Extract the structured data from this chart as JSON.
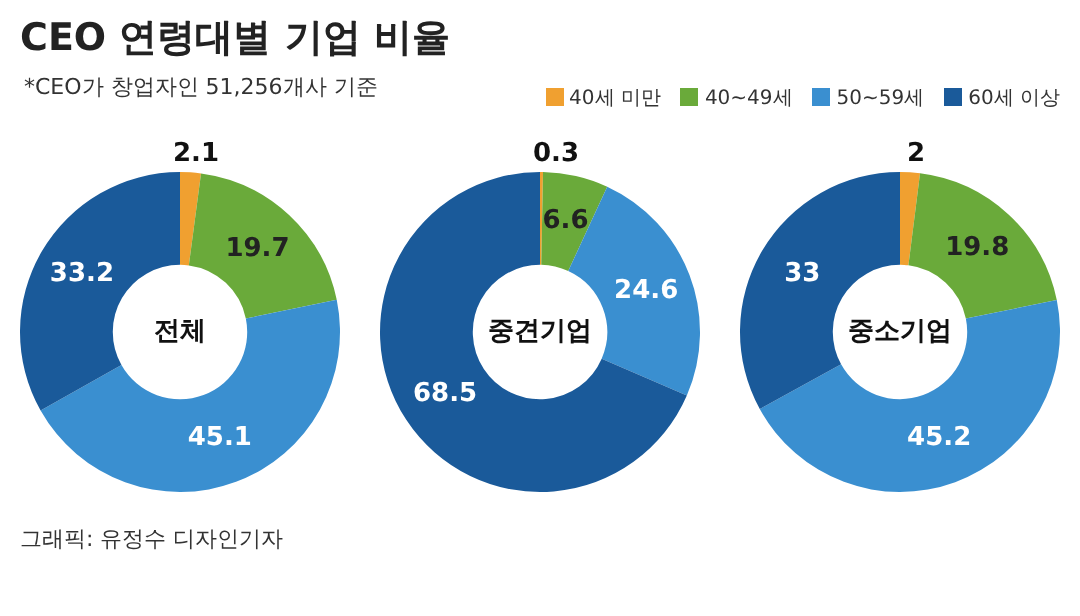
{
  "chart_data": [
    {
      "type": "other",
      "title": "CEO 연령대별 기업 비율",
      "subtitle": "*CEO가 창업자인 51,256개사 기준",
      "annotations": [
        "그래픽: 유정수 디자인기자"
      ]
    },
    {
      "type": "donut",
      "title": "전체",
      "categories": [
        "40세 미만",
        "40~49세",
        "50~59세",
        "60세 이상"
      ],
      "values": [
        2.1,
        19.7,
        45.1,
        33.2
      ],
      "colors": [
        "#f0a030",
        "#6aaa3a",
        "#3a8fd0",
        "#1a5a9a"
      ],
      "data_labels": true,
      "legend": "top right"
    },
    {
      "type": "donut",
      "title": "중견기업",
      "categories": [
        null,
        null,
        null,
        null
      ],
      "values": [
        0.3,
        6.6,
        24.6,
        68.5
      ],
      "colors": [
        "#f0a030",
        "#6aaa3a",
        "#3a8fd0",
        "#1a5a9a"
      ],
      "data_labels": true
    },
    {
      "type": "donut",
      "title": "중소기업",
      "categories": [
        null,
        null,
        null,
        null
      ],
      "values": [
        2,
        19.8,
        45.2,
        33
      ],
      "colors": [
        "#f0a030",
        "#6aaa3a",
        "#3a8fd0",
        "#1a5a9a"
      ],
      "data_labels": true
    }
  ]
}
